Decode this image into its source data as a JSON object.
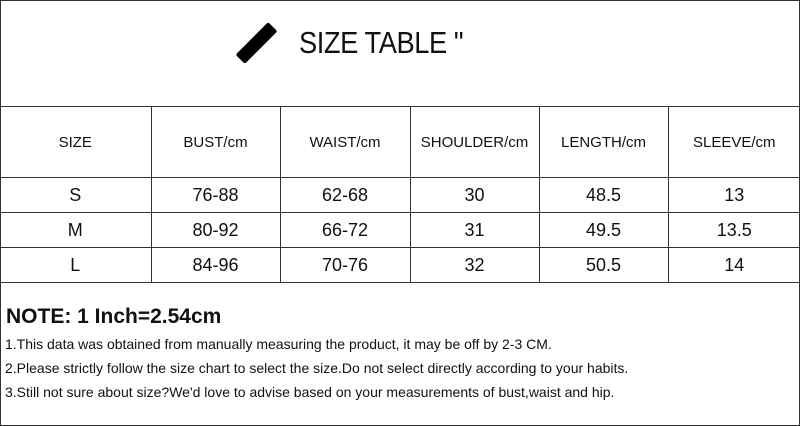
{
  "title": "SIZE TABLE \"",
  "table": {
    "headers": [
      "SIZE",
      "BUST/cm",
      "WAIST/cm",
      "SHOULDER/cm",
      "LENGTH/cm",
      "SLEEVE/cm"
    ],
    "rows": [
      [
        "S",
        "76-88",
        "62-68",
        "30",
        "48.5",
        "13"
      ],
      [
        "M",
        "80-92",
        "66-72",
        "31",
        "49.5",
        "13.5"
      ],
      [
        "L",
        "84-96",
        "70-76",
        "32",
        "50.5",
        "14"
      ]
    ]
  },
  "note": {
    "heading": "NOTE: 1 Inch=2.54cm",
    "lines": [
      "1.This data was obtained from manually measuring the product, it may be off by 2-3 CM.",
      "2.Please strictly follow the size chart to select the size.Do not select directly according to your habits.",
      "3.Still not sure about size?We'd love to advise based on your measurements of bust,waist and hip."
    ]
  }
}
